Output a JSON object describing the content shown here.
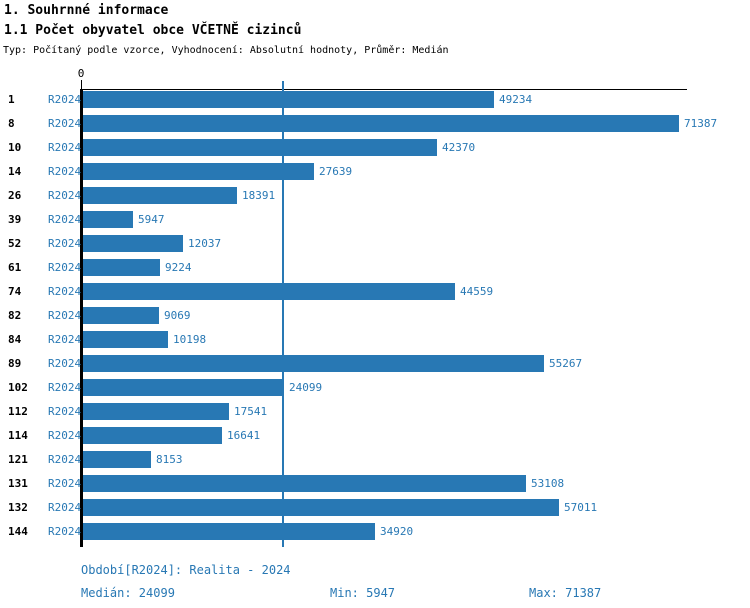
{
  "header": {
    "title1": "1. Souhrnné informace",
    "title2": "1.1 Počet obyvatel obce VČETNĚ cizinců",
    "subtitle": "Typ: Počítaný podle vzorce, Vyhodnocení: Absolutní hodnoty, Průměr: Medián"
  },
  "chart_data": {
    "type": "bar",
    "orientation": "horizontal",
    "series_label": "R2024",
    "categories": [
      "1",
      "8",
      "10",
      "14",
      "26",
      "39",
      "52",
      "61",
      "74",
      "82",
      "84",
      "89",
      "102",
      "112",
      "114",
      "121",
      "131",
      "132",
      "144"
    ],
    "values": [
      49234,
      71387,
      42370,
      27639,
      18391,
      5947,
      12037,
      9224,
      44559,
      9069,
      10198,
      55267,
      24099,
      17541,
      16641,
      8153,
      53108,
      57011,
      34920
    ],
    "xlim": [
      0,
      71387
    ],
    "zero_tick_label": "0",
    "median_reference_line": 24099,
    "bar_color": "#2878b4",
    "axis_color": "#000000",
    "grid": false,
    "value_labels": "right-of-bar"
  },
  "footer": {
    "period": "Období[R2024]: Realita - 2024",
    "median": "Medián: 24099",
    "min": "Min: 5947",
    "max": "Max: 71387"
  }
}
